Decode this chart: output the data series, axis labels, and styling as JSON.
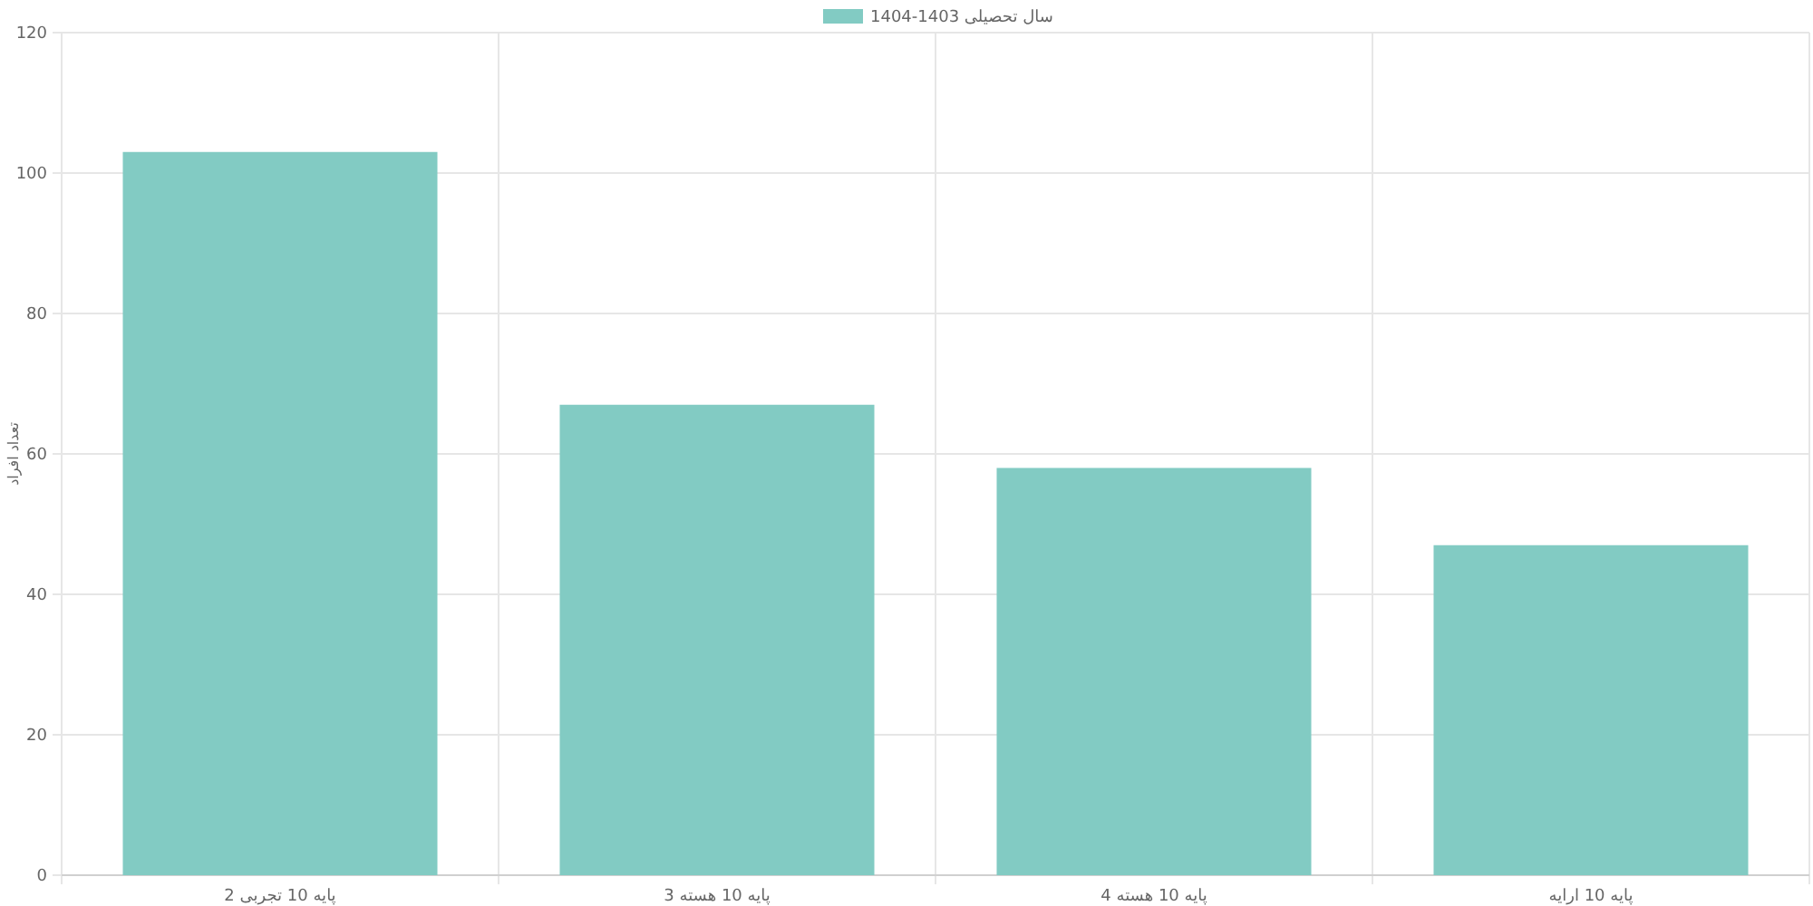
{
  "chart_data": {
    "type": "bar",
    "ylabel": "تعداد افراد",
    "categories": [
      "پایه 10 تجربی 2",
      "پایه 10 هسته 3",
      "پایه 10 هسته 4",
      "پایه 10 ارایه"
    ],
    "series": [
      {
        "name": "سال تحصیلی 1403-1404",
        "color": "#82cbc3",
        "values": [
          103,
          67,
          58,
          47
        ]
      }
    ],
    "ylim": [
      0,
      120
    ],
    "yticks": [
      0,
      20,
      40,
      60,
      80,
      100,
      120
    ],
    "grid": true,
    "legend": "top"
  }
}
